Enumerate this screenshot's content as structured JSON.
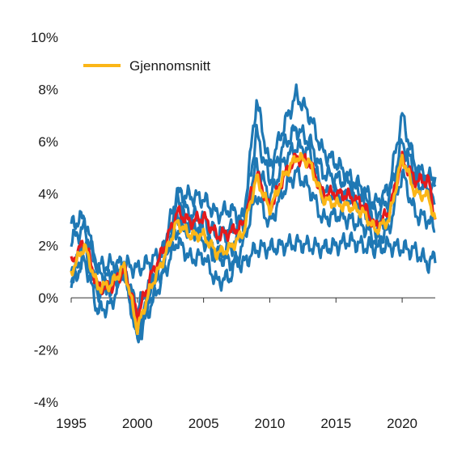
{
  "chart_data": {
    "type": "line",
    "xlim": [
      1995,
      2022.5
    ],
    "ylim": [
      -4,
      10
    ],
    "x_ticks": [
      1995,
      2000,
      2005,
      2010,
      2015,
      2020
    ],
    "x_tick_labels": [
      "1995",
      "2000",
      "2005",
      "2010",
      "2015",
      "2020"
    ],
    "y_ticks": [
      -4,
      -2,
      0,
      2,
      4,
      6,
      8,
      10
    ],
    "y_tick_labels": [
      "-4%",
      "-2%",
      "0%",
      "2%",
      "4%",
      "6%",
      "8%",
      "10%"
    ],
    "grid": false,
    "legend": {
      "position": "top-left",
      "entries": [
        "Gjennomsnitt"
      ]
    },
    "colors": {
      "series": "#1f78b4",
      "highlight": "#e41a1c",
      "average": "#fbb617",
      "axis": "#333333"
    },
    "series": [
      {
        "x": [
          1995,
          1996,
          1997,
          1998,
          1999,
          2000,
          2001,
          2002,
          2003,
          2004,
          2005,
          2006,
          2007,
          2008,
          2009,
          2010,
          2011,
          2012,
          2013,
          2014,
          2015,
          2016,
          2017,
          2018,
          2019,
          2020,
          2021,
          2022,
          2022.5
        ],
        "values": [
          2.2,
          2.7,
          1.2,
          1.3,
          1.3,
          1.1,
          1.4,
          1.8,
          2.6,
          2.7,
          2.2,
          1.6,
          1.4,
          1.3,
          1.9,
          1.9,
          2.0,
          2.1,
          2.0,
          1.9,
          2.0,
          2.2,
          2.0,
          1.9,
          2.0,
          1.9,
          1.8,
          1.3,
          1.6
        ]
      },
      {
        "x": [
          1995,
          1996,
          1997,
          1998,
          1999,
          2000,
          2001,
          2002,
          2003,
          2004,
          2005,
          2006,
          2007,
          2008,
          2009,
          2010,
          2011,
          2012,
          2013,
          2014,
          2015,
          2016,
          2017,
          2018,
          2019,
          2020,
          2021,
          2022,
          2022.5
        ],
        "values": [
          2.8,
          3.1,
          1.0,
          0.7,
          1.2,
          -1.5,
          0.3,
          2.0,
          4.0,
          3.9,
          3.8,
          3.2,
          3.4,
          3.0,
          7.6,
          5.0,
          6.5,
          7.8,
          7.0,
          5.6,
          5.2,
          4.6,
          4.2,
          3.6,
          4.2,
          7.0,
          5.0,
          4.6,
          4.6
        ]
      },
      {
        "x": [
          1995,
          1996,
          1997,
          1998,
          1999,
          2000,
          2001,
          2002,
          2003,
          2004,
          2005,
          2006,
          2007,
          2008,
          2009,
          2010,
          2011,
          2012,
          2013,
          2014,
          2015,
          2016,
          2017,
          2018,
          2019,
          2020,
          2021,
          2022,
          2022.5
        ],
        "values": [
          1.0,
          2.2,
          0.3,
          0.4,
          1.0,
          -0.4,
          0.6,
          1.5,
          3.8,
          3.2,
          3.0,
          2.4,
          2.6,
          2.9,
          6.3,
          4.5,
          5.8,
          6.5,
          6.0,
          4.8,
          4.6,
          4.4,
          4.0,
          3.2,
          3.8,
          6.0,
          4.8,
          4.4,
          4.5
        ]
      },
      {
        "x": [
          1995,
          1996,
          1997,
          1998,
          1999,
          2000,
          2001,
          2002,
          2003,
          2004,
          2005,
          2006,
          2007,
          2008,
          2009,
          2010,
          2011,
          2012,
          2013,
          2014,
          2015,
          2016,
          2017,
          2018,
          2019,
          2020,
          2021,
          2022,
          2022.5
        ],
        "values": [
          0.6,
          1.8,
          0.2,
          0.6,
          1.0,
          -1.2,
          0.0,
          1.2,
          3.2,
          2.8,
          2.6,
          1.6,
          1.9,
          2.5,
          5.2,
          3.8,
          5.2,
          5.8,
          5.6,
          4.0,
          4.0,
          3.8,
          3.6,
          2.6,
          3.2,
          5.6,
          4.4,
          4.2,
          3.4
        ]
      },
      {
        "x": [
          1995,
          1996,
          1997,
          1998,
          1999,
          2000,
          2001,
          2002,
          2003,
          2004,
          2005,
          2006,
          2007,
          2008,
          2009,
          2010,
          2011,
          2012,
          2013,
          2014,
          2015,
          2016,
          2017,
          2018,
          2019,
          2020,
          2021,
          2022,
          2022.5
        ],
        "values": [
          0.5,
          1.5,
          -0.5,
          -0.3,
          1.1,
          -1.7,
          -0.3,
          0.9,
          2.2,
          1.5,
          1.6,
          0.6,
          0.8,
          2.1,
          4.0,
          2.8,
          4.1,
          4.8,
          4.2,
          3.0,
          3.2,
          3.0,
          2.8,
          2.2,
          2.6,
          4.8,
          3.2,
          3.0,
          2.6
        ]
      },
      {
        "x": [
          1995,
          1996,
          1997,
          1998,
          1999,
          2000,
          2001,
          2002,
          2003,
          2004,
          2005,
          2006,
          2007,
          2008,
          2009,
          2010,
          2011,
          2012,
          2013,
          2014,
          2015,
          2016,
          2017,
          2018,
          2019,
          2020,
          2021,
          2022,
          2022.5
        ],
        "values": [
          1.3,
          2.2,
          0.4,
          0.4,
          1.1,
          -0.7,
          0.8,
          1.9,
          3.3,
          2.9,
          3.1,
          2.4,
          2.5,
          2.8,
          4.8,
          3.4,
          4.6,
          5.4,
          5.2,
          4.0,
          4.0,
          3.9,
          3.6,
          2.7,
          3.3,
          5.3,
          4.5,
          4.5,
          3.0
        ]
      },
      {
        "x": [
          1995,
          1996,
          1997,
          1998,
          1999,
          2000,
          2001,
          2002,
          2003,
          2004,
          2005,
          2006,
          2007,
          2008,
          2009,
          2010,
          2011,
          2012,
          2013,
          2014,
          2015,
          2016,
          2017,
          2018,
          2019,
          2020,
          2021,
          2022,
          2022.5
        ],
        "values": [
          1.0,
          2.0,
          0.4,
          0.5,
          1.2,
          -1.2,
          0.4,
          1.5,
          2.9,
          2.4,
          2.4,
          1.7,
          1.9,
          2.5,
          4.6,
          3.4,
          4.6,
          5.4,
          5.2,
          3.8,
          3.6,
          3.5,
          3.3,
          2.6,
          3.0,
          5.4,
          4.0,
          3.9,
          2.9
        ]
      }
    ]
  }
}
